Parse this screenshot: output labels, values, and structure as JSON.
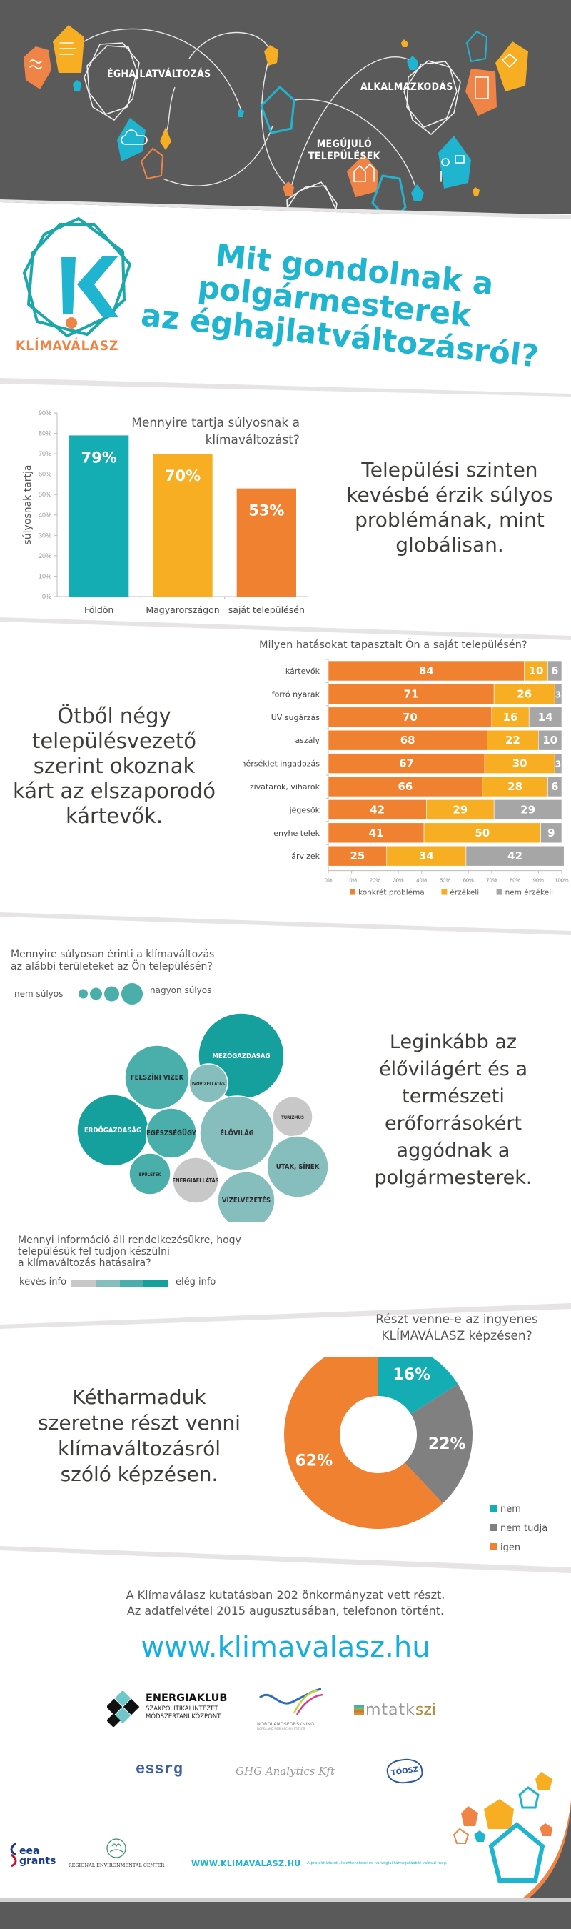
{
  "header": {
    "labels": [
      "ÉGHAJLATVÁLTOZÁS",
      "ALKALMAZKODÁS",
      "MEGÚJULÓ",
      "TELEPÜLÉSEK"
    ],
    "icons": [
      "waves-icon",
      "wind-icon",
      "sun-cloud-rain-icon",
      "handshake-icon",
      "document-icon",
      "people-chat-icon",
      "houses-icon",
      "weathervane-icon"
    ]
  },
  "brand": {
    "logo_letter": "K",
    "name": "KLÍMAVÁLASZ",
    "title_lines": [
      "Mit gondolnak a",
      "polgármesterek",
      "az éghajlatváltozásról?"
    ]
  },
  "colors": {
    "teal": "#13adb3",
    "cyan": "#1fb4cf",
    "yellow": "#f7ae22",
    "orange": "#f08130",
    "gray": "#a6a6a6",
    "dark_gray": "#5b5a5b",
    "text": "#3d3d3a"
  },
  "section1": {
    "statement": [
      "Települési szinten",
      "kevésbé érzik súlyos",
      "problémának, mint",
      "globálisan."
    ]
  },
  "section2": {
    "statement": [
      "Ötből négy",
      "településvezető",
      "szerint okoznak",
      "kárt az elszaporodó",
      "kártevők."
    ]
  },
  "section3": {
    "statement": [
      "Leginkább az",
      "élővilágért és a",
      "természeti",
      "erőforrásokért",
      "aggódnak a",
      "polgármesterek."
    ],
    "info_question": [
      "Mennyi információ áll rendelkezésükre, hogy",
      "településük fel tudjon készülni",
      "a klímaváltozás hatásaira?"
    ],
    "info_scale_low": "kevés info",
    "info_scale_high": "elég info"
  },
  "section4": {
    "statement": [
      "Kétharmaduk",
      "szeretne részt venni",
      "klímaváltozásról",
      "szóló képzésen."
    ]
  },
  "footer": {
    "study_note": [
      "A Klímaválasz kutatásban 202 önkormányzat vett részt.",
      "Az adatfelvétel 2015 augusztusában, telefonon történt."
    ],
    "url": "www.klimavalasz.hu",
    "partners": [
      {
        "name": "ENERGIAKLUB",
        "sub": [
          "SZAKPOLITIKAI INTÉZET",
          "MÓDSZERTANI KÖZPONT"
        ]
      },
      {
        "name": "NORDLANDSFORSKNING",
        "sub": [
          "NORDLAND RESEARCH INSTITUTE"
        ]
      },
      {
        "name": "mtatk",
        "accent": "szi"
      },
      {
        "name": "essrg"
      },
      {
        "name": "GHG Analytics Kft"
      },
      {
        "name": "TÖOSZ"
      }
    ],
    "bottom": {
      "eea": [
        "eea",
        "grants"
      ],
      "rec": "REGIONAL ENVIRONMENTAL CENTER",
      "url_caps": "WWW.KLIMAVALASZ.HU",
      "funding_note": "A projekt izlandi, liechtensteini és norvégiai támogatásból valósul meg."
    }
  },
  "chart_data": [
    {
      "type": "bar",
      "title": "Mennyire tartja súlyosnak a klímaváltozást?",
      "title_lines": [
        "Mennyire tartja súlyosnak a",
        "klímaváltozást?"
      ],
      "xlabel": "",
      "ylabel": "súlyosnak tartja",
      "categories": [
        "Földön",
        "Magyarországon",
        "saját településén"
      ],
      "values": [
        79,
        70,
        53
      ],
      "value_labels": [
        "79%",
        "70%",
        "53%"
      ],
      "bar_colors": [
        "#13adb3",
        "#f7ae22",
        "#f08130"
      ],
      "ylim": [
        0,
        90
      ],
      "yticks": [
        "0%",
        "10%",
        "20%",
        "30%",
        "40%",
        "50%",
        "60%",
        "70%",
        "80%",
        "90%"
      ],
      "grid": false
    },
    {
      "type": "bar",
      "orientation": "horizontal-stacked-100",
      "title": "Milyen hatásokat tapasztalt Ön a saját településén?",
      "categories": [
        "kártevők",
        "forró nyarak",
        "UV sugárzás",
        "aszály",
        "hőmérséklet ingadozás",
        "zivatarok, viharok",
        "jégesők",
        "enyhe telek",
        "árvizek"
      ],
      "series": [
        {
          "name": "konkrét probléma",
          "color": "#f08130",
          "values": [
            84,
            71,
            70,
            68,
            67,
            66,
            42,
            41,
            25
          ]
        },
        {
          "name": "érzékeli",
          "color": "#f7ae22",
          "values": [
            10,
            26,
            16,
            22,
            30,
            28,
            29,
            50,
            34
          ]
        },
        {
          "name": "nem érzékeli",
          "color": "#a6a6a6",
          "values": [
            6,
            3,
            14,
            10,
            3,
            6,
            29,
            9,
            42
          ]
        }
      ],
      "xlim": [
        0,
        100
      ],
      "xticks": [
        "0%",
        "10%",
        "20%",
        "30%",
        "40%",
        "50%",
        "60%",
        "70%",
        "80%",
        "90%",
        "100%"
      ],
      "legend": "bottom"
    },
    {
      "type": "scatter",
      "subtype": "bubble",
      "title": "Mennyire súlyosan érinti a klímaváltozás az alábbi területeket az Ön településén?",
      "title_lines": [
        "Mennyire súlyosan érinti a klímaváltozás",
        "az alábbi területeket az Ön településén?"
      ],
      "size_legend": {
        "low": "nem súlyos",
        "high": "nagyon súlyos",
        "levels": 4
      },
      "color_legend": {
        "low": "kevés info",
        "high": "elég info",
        "colors": [
          "#c8c8c8",
          "#86bdbd",
          "#4aaeab",
          "#15a09e"
        ]
      },
      "bubbles": [
        {
          "label": "MEZŐGAZDASÁG",
          "severity": 4,
          "info": 4
        },
        {
          "label": "FELSZÍNI VIZEK",
          "severity": 3,
          "info": 3
        },
        {
          "label": "IVÓVÍZELLÁTÁS",
          "severity": 2,
          "info": 2
        },
        {
          "label": "ERDŐGAZDASÁG",
          "severity": 3.5,
          "info": 4
        },
        {
          "label": "EGÉSZSÉGÜGY",
          "severity": 2.7,
          "info": 3
        },
        {
          "label": "ÉLŐVILÁG",
          "severity": 3.8,
          "info": 2
        },
        {
          "label": "TURIZMUS",
          "severity": 1.8,
          "info": 1
        },
        {
          "label": "ÉPÜLETEK",
          "severity": 2.2,
          "info": 3
        },
        {
          "label": "ENERGIAELLÁTÁS",
          "severity": 2.5,
          "info": 1
        },
        {
          "label": "UTAK, SÍNEK",
          "severity": 3,
          "info": 2
        },
        {
          "label": "VÍZELVEZETÉS",
          "severity": 2.8,
          "info": 2
        }
      ]
    },
    {
      "type": "pie",
      "subtype": "donut",
      "title": "Részt venne-e az ingyenes KLÍMAVÁLASZ képzésen?",
      "title_lines": [
        "Részt venne-e az ingyenes",
        "KLÍMAVÁLASZ képzésen?"
      ],
      "labels": [
        "nem",
        "nem tudja",
        "igen"
      ],
      "values": [
        16,
        22,
        62
      ],
      "value_labels": [
        "16%",
        "22%",
        "62%"
      ],
      "colors": [
        "#13adb3",
        "#808080",
        "#f08130"
      ],
      "legend": "right"
    }
  ]
}
